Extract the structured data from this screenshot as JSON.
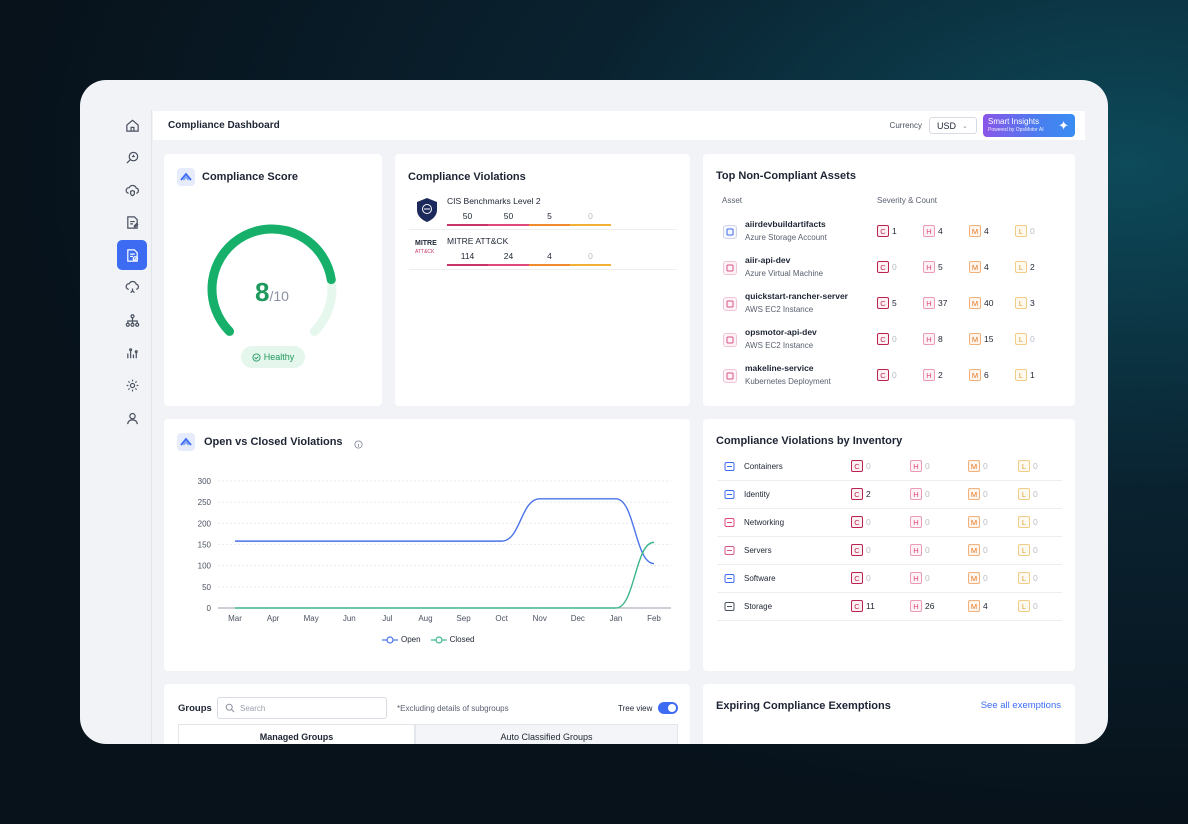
{
  "header": {
    "page_title": "Compliance Dashboard",
    "currency_label": "Currency",
    "currency_value": "USD",
    "smart_insights": "Smart Insights",
    "smart_insights_sub": "Powered by OpsMotor AI"
  },
  "sidebar": {
    "items": [
      {
        "icon": "home-icon"
      },
      {
        "icon": "search-bug-icon"
      },
      {
        "icon": "cloud-shield-icon"
      },
      {
        "icon": "document-edit-icon"
      },
      {
        "icon": "compliance-icon",
        "active": true
      },
      {
        "icon": "cloud-refresh-icon"
      },
      {
        "icon": "hierarchy-icon"
      },
      {
        "icon": "signal-icon"
      },
      {
        "icon": "gear-cog-icon"
      },
      {
        "icon": "user-icon"
      }
    ]
  },
  "compliance_score": {
    "title": "Compliance Score",
    "score": "8",
    "max": "/10",
    "status": "Healthy",
    "fraction": 0.8
  },
  "violations": {
    "title": "Compliance Violations",
    "rows": [
      {
        "name": "CIS Benchmarks Level 2",
        "c": "50",
        "h": "50",
        "m": "5",
        "l": "0"
      },
      {
        "name": "MITRE ATT&CK",
        "logo_text_1": "MITRE",
        "logo_text_2": "ATT&CK",
        "c": "114",
        "h": "24",
        "m": "4",
        "l": "0"
      }
    ]
  },
  "assets": {
    "title": "Top Non-Compliant Assets",
    "col_asset": "Asset",
    "col_severity": "Severity & Count",
    "rows": [
      {
        "name": "aiirdevbuildartifacts",
        "type": "Azure Storage Account",
        "c": "1",
        "h": "4",
        "m": "4",
        "l": "0"
      },
      {
        "name": "aiir-api-dev",
        "type": "Azure Virtual Machine",
        "c": "0",
        "h": "5",
        "m": "4",
        "l": "2"
      },
      {
        "name": "quickstart-rancher-server",
        "type": "AWS EC2 Instance",
        "c": "5",
        "h": "37",
        "m": "40",
        "l": "3"
      },
      {
        "name": "opsmotor-api-dev",
        "type": "AWS EC2 Instance",
        "c": "0",
        "h": "8",
        "m": "15",
        "l": "0"
      },
      {
        "name": "makeline-service",
        "type": "Kubernetes Deployment",
        "c": "0",
        "h": "2",
        "m": "6",
        "l": "1"
      }
    ]
  },
  "open_closed": {
    "title": "Open vs Closed Violations",
    "legend_open": "Open",
    "legend_closed": "Closed",
    "colors": {
      "open": "#4a74e8",
      "closed": "#3bb58a"
    }
  },
  "chart_data": {
    "type": "line",
    "x": [
      "Mar",
      "Apr",
      "May",
      "Jun",
      "Jul",
      "Aug",
      "Sep",
      "Oct",
      "Nov",
      "Dec",
      "Jan",
      "Feb"
    ],
    "yticks": [
      "0",
      "50",
      "100",
      "150",
      "200",
      "250",
      "300"
    ],
    "ylim": [
      0,
      300
    ],
    "series": [
      {
        "name": "Open",
        "values": [
          158,
          158,
          158,
          158,
          158,
          158,
          158,
          158,
          258,
          258,
          258,
          105
        ]
      },
      {
        "name": "Closed",
        "values": [
          0,
          0,
          0,
          0,
          0,
          0,
          0,
          0,
          0,
          0,
          0,
          155
        ]
      }
    ],
    "grid": true,
    "legend": "bottom-center"
  },
  "inventory": {
    "title": "Compliance Violations by Inventory",
    "rows": [
      {
        "name": "Containers",
        "icon": "containers-icon",
        "c": "0",
        "h": "0",
        "m": "0",
        "l": "0"
      },
      {
        "name": "Identity",
        "icon": "identity-icon",
        "c": "2",
        "h": "0",
        "m": "0",
        "l": "0"
      },
      {
        "name": "Networking",
        "icon": "networking-icon",
        "c": "0",
        "h": "0",
        "m": "0",
        "l": "0"
      },
      {
        "name": "Servers",
        "icon": "servers-icon",
        "c": "0",
        "h": "0",
        "m": "0",
        "l": "0"
      },
      {
        "name": "Software",
        "icon": "software-icon",
        "c": "0",
        "h": "0",
        "m": "0",
        "l": "0"
      },
      {
        "name": "Storage",
        "icon": "storage-icon",
        "c": "11",
        "h": "26",
        "m": "4",
        "l": "0"
      }
    ]
  },
  "groups": {
    "label": "Groups",
    "search_placeholder": "Search",
    "note": "*Excluding details of subgroups",
    "tree_view": "Tree view",
    "tabs": [
      "Managed Groups",
      "Auto Classified Groups"
    ]
  },
  "exemptions": {
    "title": "Expiring Compliance Exemptions",
    "see_all": "See all exemptions"
  },
  "severity_letters": {
    "c": "C",
    "h": "H",
    "m": "M",
    "l": "L"
  }
}
